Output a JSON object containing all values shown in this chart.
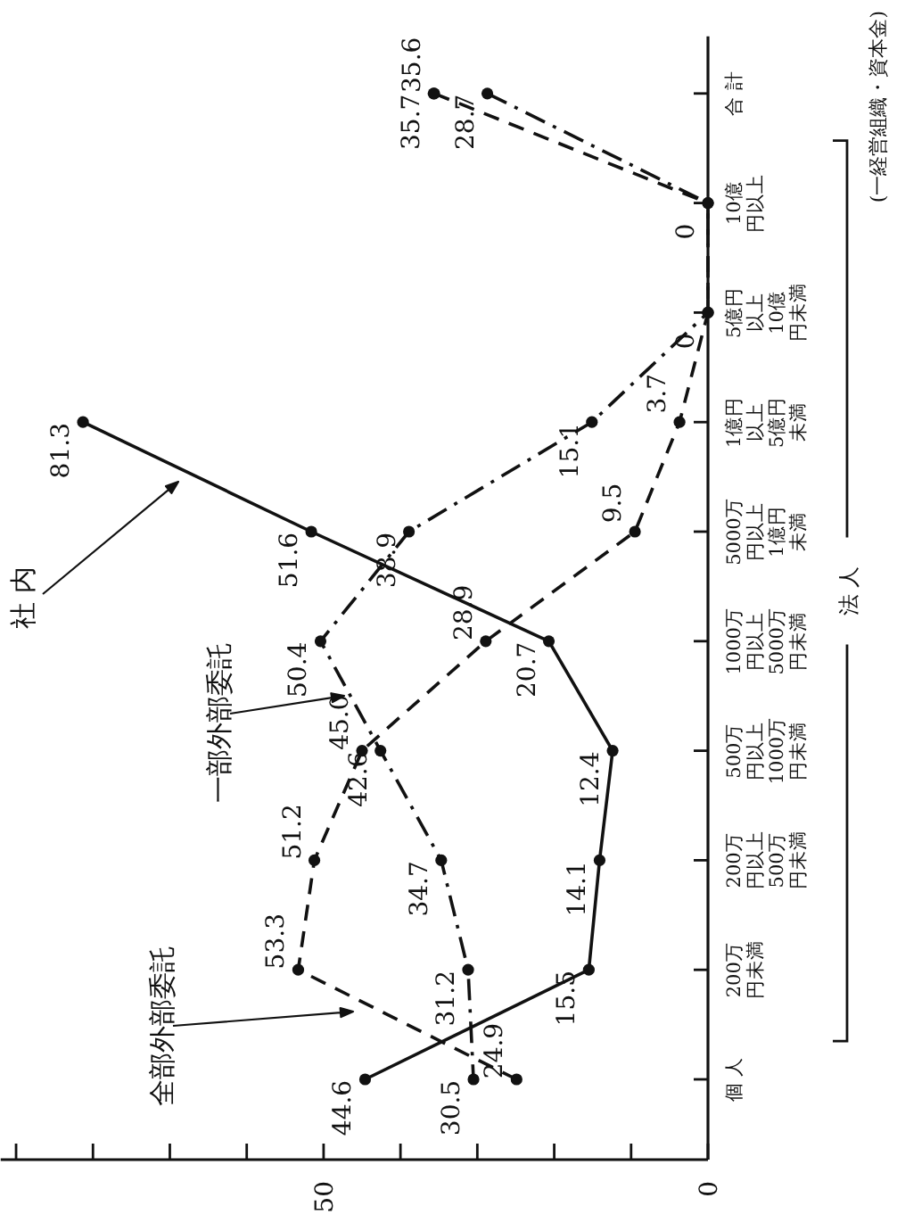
{
  "chart_data": {
    "type": "line",
    "orientation": "horizontal",
    "categories": [
      "合 計",
      "10億円以上",
      "5億円以上10億円未満",
      "1億円以上5億円未満",
      "5000万円以上1億円未満",
      "1000万円以上5000万円未満",
      "500万円以上1000万円未満",
      "200万円以上500万円未満",
      "200万円未満",
      "個 人"
    ],
    "series": [
      {
        "name": "社 内",
        "color": "#111111",
        "line_style": "solid",
        "values": [
          35.7,
          null,
          null,
          81.3,
          51.6,
          20.7,
          12.4,
          14.1,
          15.5,
          44.6
        ],
        "value_labels": [
          "35.7",
          null,
          null,
          "81.3",
          "51.6",
          "20.7",
          "12.4",
          "14.1",
          "15.5",
          "44.6"
        ]
      },
      {
        "name": "一部外部委託",
        "color": "#111111",
        "line_style": "dashdot",
        "values": [
          28.7,
          0,
          0,
          15.1,
          38.9,
          50.4,
          42.6,
          34.7,
          31.2,
          30.5
        ],
        "value_labels": [
          "28.7",
          "0",
          "0",
          "15.1",
          "38.9",
          "50.4",
          "42.6",
          "34.7",
          "31.2",
          "30.5"
        ]
      },
      {
        "name": "全部外部委託",
        "color": "#111111",
        "line_style": "dashed",
        "values": [
          35.6,
          0,
          0,
          3.7,
          9.5,
          28.9,
          45.0,
          51.2,
          53.3,
          24.9
        ],
        "value_labels": [
          "35.6",
          null,
          null,
          "3.7",
          "9.5",
          "28.9",
          "45.0",
          "51.2",
          "53.3",
          "24.9"
        ]
      }
    ],
    "xlim": [
      92,
      0
    ],
    "xticks": [
      {
        "value": 90,
        "label": null
      },
      {
        "value": 80,
        "label": null
      },
      {
        "value": 70,
        "label": null
      },
      {
        "value": 60,
        "label": null
      },
      50,
      {
        "value": 40,
        "label": null
      },
      {
        "value": 30,
        "label": null
      },
      {
        "value": 20,
        "label": null
      },
      {
        "value": 10,
        "label": null
      },
      0
    ],
    "marker": "circle",
    "grid": false,
    "legend": false,
    "annotations": [
      "法 人",
      "(一経営組織・資本金)"
    ]
  }
}
